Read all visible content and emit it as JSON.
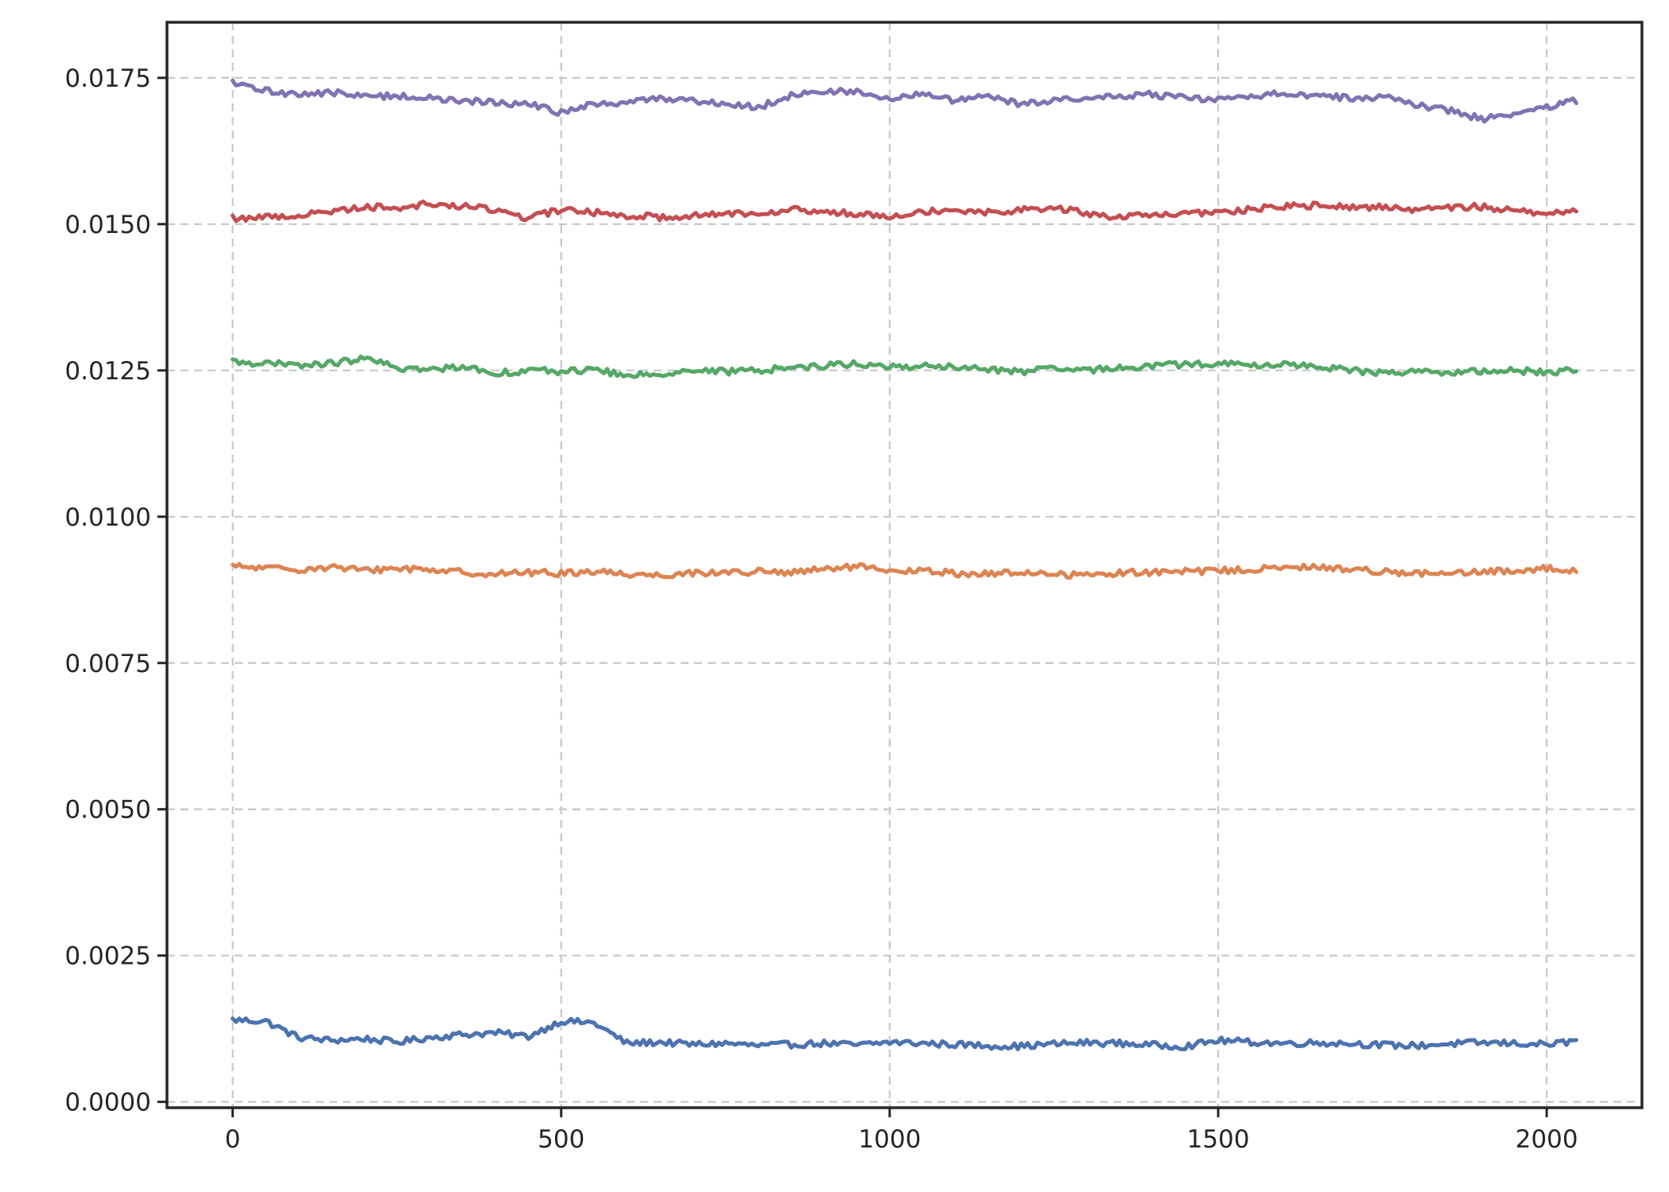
{
  "chart_data": {
    "type": "line",
    "title": "",
    "xlabel": "",
    "ylabel": "",
    "xlim": [
      -100,
      2145
    ],
    "ylim": [
      -0.0001,
      0.01845
    ],
    "xticks": [
      0,
      500,
      1000,
      1500,
      2000
    ],
    "xtick_labels": [
      "0",
      "500",
      "1000",
      "1500",
      "2000"
    ],
    "yticks": [
      0.0,
      0.0025,
      0.005,
      0.0075,
      0.01,
      0.0125,
      0.015,
      0.0175
    ],
    "ytick_labels": [
      "0.0000",
      "0.0025",
      "0.0050",
      "0.0075",
      "0.0100",
      "0.0125",
      "0.0150",
      "0.0175"
    ],
    "grid": true,
    "legend": "none",
    "x": [
      0,
      50,
      100,
      150,
      200,
      250,
      300,
      350,
      400,
      450,
      500,
      550,
      600,
      650,
      700,
      750,
      800,
      850,
      900,
      950,
      1000,
      1050,
      1100,
      1150,
      1200,
      1250,
      1300,
      1350,
      1400,
      1450,
      1500,
      1550,
      1600,
      1650,
      1700,
      1750,
      1800,
      1850,
      1900,
      1950,
      2000,
      2047
    ],
    "series": [
      {
        "color": "#4c72b0",
        "values": [
          0.0014,
          0.00138,
          0.0011,
          0.00105,
          0.00108,
          0.00102,
          0.0011,
          0.00115,
          0.00118,
          0.00112,
          0.00138,
          0.00135,
          0.001,
          0.00102,
          0.00098,
          0.001,
          0.00096,
          0.00098,
          0.001,
          0.00097,
          0.00102,
          0.001,
          0.00098,
          0.00096,
          0.00095,
          0.00099,
          0.00101,
          0.001,
          0.00097,
          0.00095,
          0.00105,
          0.00102,
          0.001,
          0.00101,
          0.001,
          0.00097,
          0.00096,
          0.00099,
          0.00101,
          0.001,
          0.00098,
          0.00104
        ]
      },
      {
        "color": "#dd8452",
        "values": [
          0.00915,
          0.00912,
          0.0091,
          0.00914,
          0.00908,
          0.00912,
          0.0091,
          0.00905,
          0.00902,
          0.00905,
          0.00903,
          0.00907,
          0.00902,
          0.009,
          0.00904,
          0.00905,
          0.00906,
          0.00904,
          0.0091,
          0.00915,
          0.00905,
          0.00908,
          0.00903,
          0.00902,
          0.00905,
          0.00902,
          0.009,
          0.00904,
          0.00905,
          0.00906,
          0.00908,
          0.0091,
          0.00912,
          0.00914,
          0.0091,
          0.00907,
          0.00903,
          0.00902,
          0.00905,
          0.00908,
          0.00912,
          0.00905
        ]
      },
      {
        "color": "#55a868",
        "values": [
          0.01265,
          0.01262,
          0.01258,
          0.01262,
          0.0127,
          0.01255,
          0.0125,
          0.01258,
          0.01245,
          0.0125,
          0.01248,
          0.01252,
          0.0124,
          0.01245,
          0.0125,
          0.01248,
          0.0125,
          0.01255,
          0.01258,
          0.01262,
          0.01255,
          0.01258,
          0.01255,
          0.01252,
          0.01248,
          0.01252,
          0.0125,
          0.01255,
          0.01258,
          0.0126,
          0.01262,
          0.01258,
          0.0126,
          0.01258,
          0.0125,
          0.01245,
          0.0125,
          0.01245,
          0.01248,
          0.0125,
          0.01247,
          0.0125
        ]
      },
      {
        "color": "#c44e52",
        "values": [
          0.0151,
          0.01512,
          0.01515,
          0.01522,
          0.0153,
          0.01528,
          0.01535,
          0.0153,
          0.01525,
          0.0151,
          0.01525,
          0.0152,
          0.01515,
          0.01512,
          0.01515,
          0.01518,
          0.0152,
          0.01525,
          0.0152,
          0.01518,
          0.01515,
          0.01522,
          0.01525,
          0.0152,
          0.01525,
          0.01528,
          0.01518,
          0.01512,
          0.01515,
          0.01518,
          0.0152,
          0.01525,
          0.0153,
          0.01532,
          0.01528,
          0.0153,
          0.01525,
          0.01528,
          0.0153,
          0.01522,
          0.0152,
          0.01525
        ]
      },
      {
        "color": "#8172b3",
        "values": [
          0.0174,
          0.01728,
          0.01722,
          0.01725,
          0.01718,
          0.0172,
          0.01715,
          0.0171,
          0.01708,
          0.01705,
          0.0169,
          0.01705,
          0.01708,
          0.01715,
          0.01712,
          0.01705,
          0.017,
          0.0172,
          0.01728,
          0.01725,
          0.01712,
          0.01725,
          0.0171,
          0.01718,
          0.01705,
          0.01712,
          0.01715,
          0.01718,
          0.01722,
          0.01715,
          0.01712,
          0.01718,
          0.01725,
          0.0172,
          0.01715,
          0.01718,
          0.01705,
          0.01695,
          0.0168,
          0.01685,
          0.017,
          0.01712
        ]
      }
    ]
  }
}
